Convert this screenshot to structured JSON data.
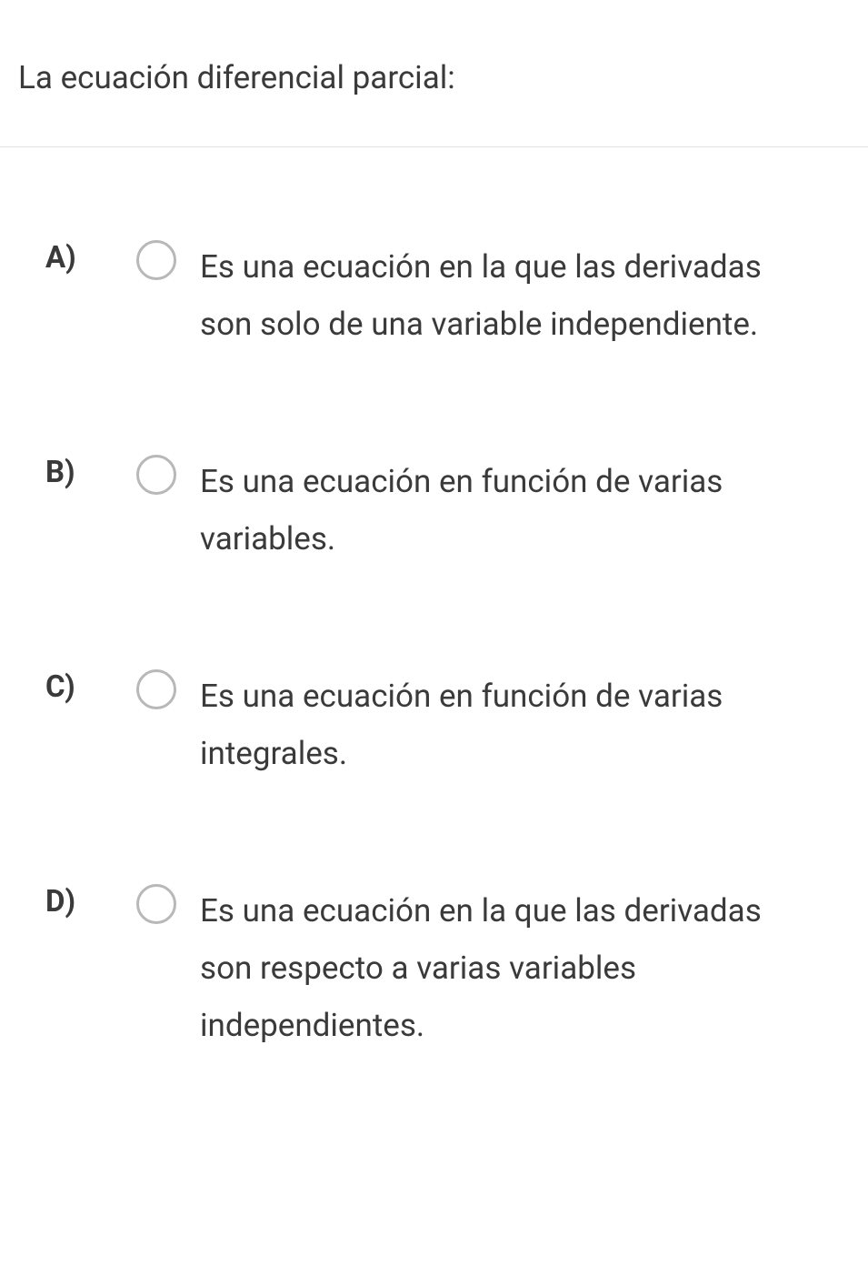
{
  "question": {
    "text": "La ecuación diferencial parcial:"
  },
  "options": [
    {
      "label": "A)",
      "text": "Es una ecuación en la que las derivadas son solo de una variable independiente."
    },
    {
      "label": "B)",
      "text": "Es una ecuación en función de varias variables."
    },
    {
      "label": "C)",
      "text": "Es una ecuación en función de varias integrales."
    },
    {
      "label": "D)",
      "text": "Es una ecuación en la que las derivadas  son respecto a varias variables independientes."
    }
  ],
  "styling": {
    "background_color": "#ffffff",
    "text_color": "#3a3a3a",
    "border_color": "#e0e0e0",
    "radio_border_color": "#b8b8b8",
    "question_fontsize": 35,
    "option_fontsize": 35,
    "label_fontsize": 33,
    "label_fontweight": 700
  }
}
